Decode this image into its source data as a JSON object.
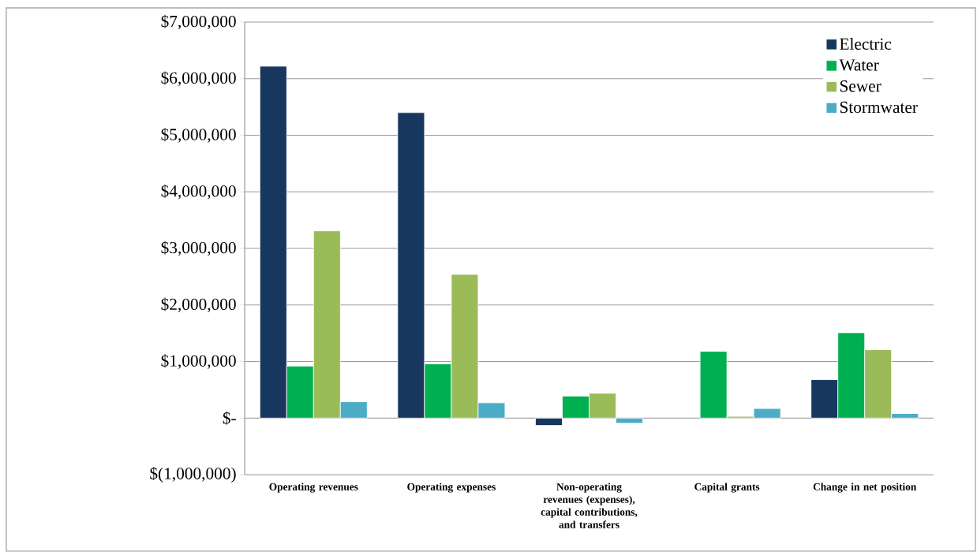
{
  "chart_data": {
    "type": "bar",
    "categories": [
      "Operating revenues",
      "Operating expenses",
      "Non-operating revenues (expenses), capital contributions, and transfers",
      "Capital grants",
      "Change in net position"
    ],
    "series": [
      {
        "name": "Electric",
        "color": "#17375e",
        "values": [
          6220000,
          5400000,
          -130000,
          null,
          680000
        ]
      },
      {
        "name": "Water",
        "color": "#00b050",
        "values": [
          920000,
          960000,
          390000,
          1180000,
          1510000
        ]
      },
      {
        "name": "Sewer",
        "color": "#9bbb59",
        "values": [
          3310000,
          2540000,
          440000,
          30000,
          1210000
        ]
      },
      {
        "name": "Stormwater",
        "color": "#4bacc6",
        "values": [
          290000,
          270000,
          -90000,
          170000,
          80000
        ]
      }
    ],
    "ylim": [
      -1000000,
      7000000
    ],
    "yticks": [
      {
        "value": -1000000,
        "label": "$(1,000,000)"
      },
      {
        "value": 0,
        "label": "$-"
      },
      {
        "value": 1000000,
        "label": "$1,000,000"
      },
      {
        "value": 2000000,
        "label": "$2,000,000"
      },
      {
        "value": 3000000,
        "label": "$3,000,000"
      },
      {
        "value": 4000000,
        "label": "$4,000,000"
      },
      {
        "value": 5000000,
        "label": "$5,000,000"
      },
      {
        "value": 6000000,
        "label": "$6,000,000"
      },
      {
        "value": 7000000,
        "label": "$7,000,000"
      }
    ],
    "grid": "y",
    "legend": "top right"
  }
}
